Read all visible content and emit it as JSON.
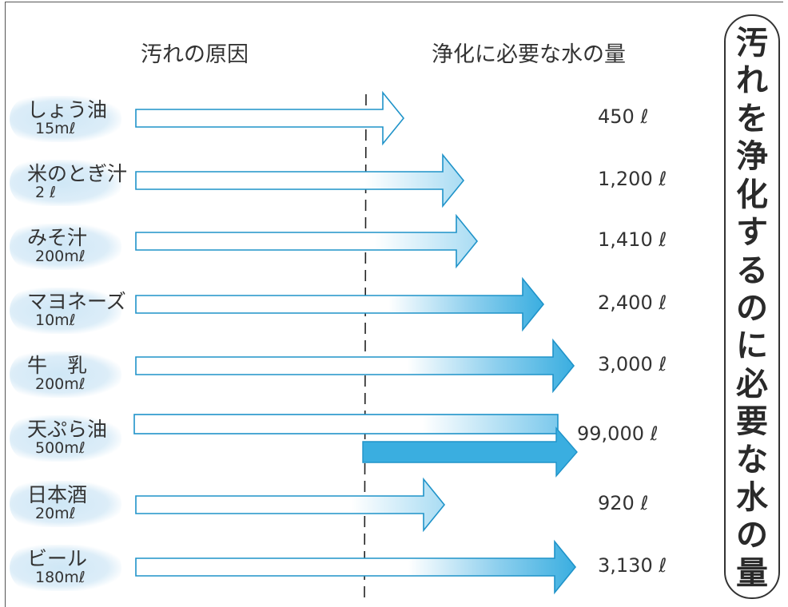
{
  "chart_data": {
    "type": "bar",
    "header_cause": "汚れの原因",
    "header_water": "浄化に必要な水の量",
    "side_title": "汚れを浄化するのに必要な水の量",
    "unit": "ℓ",
    "rows": [
      {
        "name": "しょう油",
        "amount": "15mℓ",
        "value": 450,
        "label": "450 ℓ"
      },
      {
        "name": "米のとぎ汁",
        "amount": "2 ℓ",
        "value": 1200,
        "label": "1,200 ℓ"
      },
      {
        "name": "みそ汁",
        "amount": "200mℓ",
        "value": 1410,
        "label": "1,410 ℓ"
      },
      {
        "name": "マヨネーズ",
        "amount": "10mℓ",
        "value": 2400,
        "label": "2,400 ℓ"
      },
      {
        "name": "牛　乳",
        "amount": "200mℓ",
        "value": 3000,
        "label": "3,000 ℓ"
      },
      {
        "name": "天ぷら油",
        "amount": "500mℓ",
        "value": 99000,
        "label": "99,000 ℓ"
      },
      {
        "name": "日本酒",
        "amount": "20mℓ",
        "value": 920,
        "label": "920 ℓ"
      },
      {
        "name": "ビール",
        "amount": "180mℓ",
        "value": 3130,
        "label": "3,130 ℓ"
      }
    ],
    "colors": {
      "arrow_fill": "#3aaee0",
      "arrow_outline": "#1f93c9",
      "label_bg": "#d6ebf7"
    }
  }
}
